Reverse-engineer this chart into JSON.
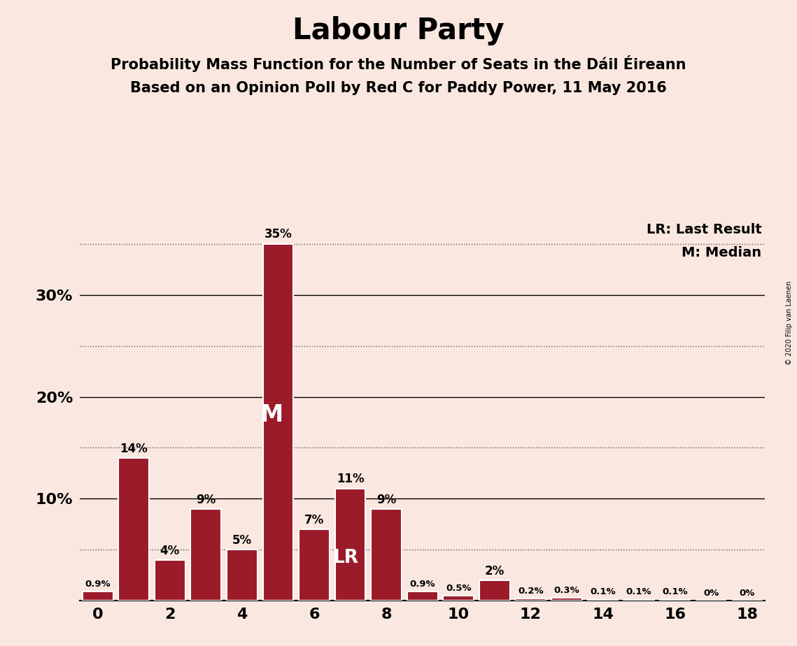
{
  "title": "Labour Party",
  "subtitle1": "Probability Mass Function for the Number of Seats in the Dáil Éireann",
  "subtitle2": "Based on an Opinion Poll by Red C for Paddy Power, 11 May 2016",
  "copyright": "© 2020 Filip van Laenen",
  "categories": [
    0,
    1,
    2,
    3,
    4,
    5,
    6,
    7,
    8,
    9,
    10,
    11,
    12,
    13,
    14,
    15,
    16,
    17,
    18
  ],
  "values": [
    0.9,
    14,
    4,
    9,
    5,
    35,
    7,
    11,
    9,
    0.9,
    0.5,
    2,
    0.2,
    0.3,
    0.1,
    0.1,
    0.1,
    0,
    0
  ],
  "labels": [
    "0.9%",
    "14%",
    "4%",
    "9%",
    "5%",
    "35%",
    "7%",
    "11%",
    "9%",
    "0.9%",
    "0.5%",
    "2%",
    "0.2%",
    "0.3%",
    "0.1%",
    "0.1%",
    "0.1%",
    "0%",
    "0%"
  ],
  "bar_color": "#9B1B2A",
  "background_color": "#FAE8E0",
  "median_bar": 5,
  "last_result_bar": 7,
  "median_label": "M",
  "last_result_label": "LR",
  "legend_lr": "LR: Last Result",
  "legend_m": "M: Median",
  "solid_grid_lines": [
    10,
    20,
    30
  ],
  "dotted_grid_lines": [
    5,
    15,
    25,
    35
  ],
  "ytick_positions": [
    10,
    20,
    30
  ],
  "ytick_labels": [
    "10%",
    "20%",
    "30%"
  ],
  "xtick_positions": [
    0,
    2,
    4,
    6,
    8,
    10,
    12,
    14,
    16,
    18
  ],
  "xlim": [
    -0.5,
    18.5
  ],
  "ylim": [
    0,
    38
  ],
  "title_fontsize": 30,
  "subtitle_fontsize": 15,
  "label_fontsize": 12,
  "axis_fontsize": 16
}
